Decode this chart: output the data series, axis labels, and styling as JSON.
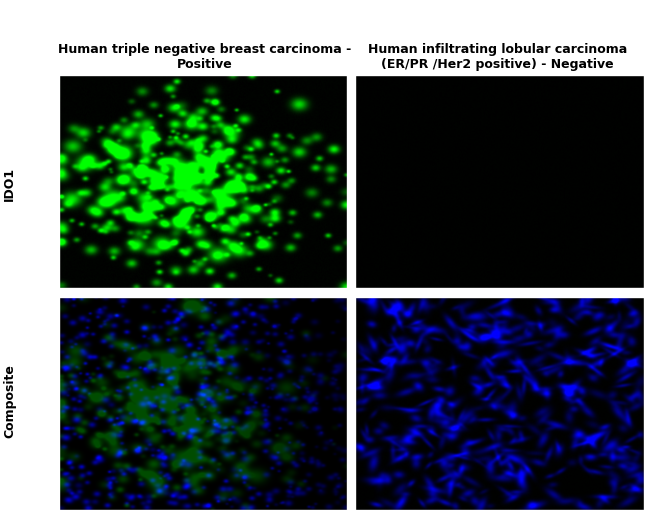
{
  "col1_title": "Human triple negative breast carcinoma -\nPositive",
  "col2_title": "Human infiltrating lobular carcinoma\n(ER/PR /Her2 positive) - Negative",
  "row1_label": "IDO1",
  "row2_label": "Composite",
  "bg_color": "#ffffff",
  "title_fontsize": 9,
  "label_fontsize": 9,
  "fig_width": 6.5,
  "fig_height": 5.15,
  "seed": 42
}
